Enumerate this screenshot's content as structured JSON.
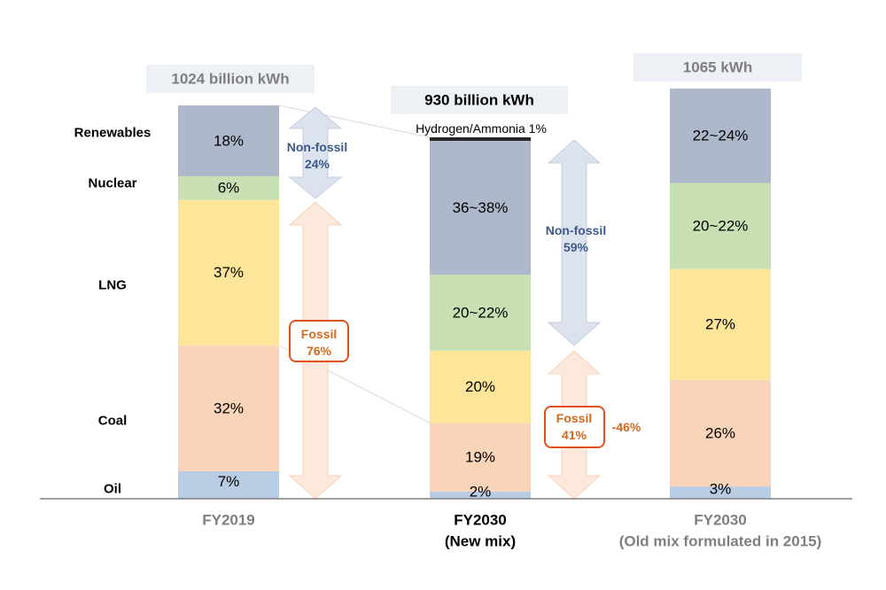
{
  "chart_data": {
    "type": "bar",
    "stacked": true,
    "unit": "%",
    "category_labels": [
      "Renewables",
      "Nuclear",
      "LNG",
      "Coal",
      "Oil"
    ],
    "bars": [
      {
        "total_label": "1024 billion kWh",
        "x_label": [
          "FY2019"
        ],
        "segments": [
          {
            "category": "Oil",
            "value": 7,
            "label": "7%",
            "color": "#b8cce4"
          },
          {
            "category": "Coal",
            "value": 32,
            "label": "32%",
            "color": "#fad4b8"
          },
          {
            "category": "LNG",
            "value": 37,
            "label": "37%",
            "color": "#fde59a"
          },
          {
            "category": "Nuclear",
            "value": 6,
            "label": "6%",
            "color": "#c8e0b4"
          },
          {
            "category": "Renewables",
            "value": 18,
            "label": "18%",
            "color": "#adb9ca"
          }
        ]
      },
      {
        "total_label": "930 billion kWh",
        "x_label": [
          "FY2030",
          "(New mix)"
        ],
        "segments": [
          {
            "category": "Oil",
            "value": 2,
            "label": "2%",
            "color": "#b8cce4"
          },
          {
            "category": "Coal",
            "value": 19,
            "label": "19%",
            "color": "#fad4b8"
          },
          {
            "category": "LNG",
            "value": 20,
            "label": "20%",
            "color": "#fde59a"
          },
          {
            "category": "Nuclear",
            "value": 21,
            "label": "20~22%",
            "color": "#c8e0b4"
          },
          {
            "category": "Renewables",
            "value": 37,
            "label": "36~38%",
            "color": "#adb9ca"
          },
          {
            "category": "Hydrogen/Ammonia",
            "value": 1,
            "label": "Hydrogen/Ammonia  1%",
            "color": "#262626"
          }
        ]
      },
      {
        "total_label": "1065 kWh",
        "x_label": [
          "FY2030",
          "(Old mix formulated in 2015)"
        ],
        "segments": [
          {
            "category": "Oil",
            "value": 3,
            "label": "3%",
            "color": "#b8cce4"
          },
          {
            "category": "Coal",
            "value": 26,
            "label": "26%",
            "color": "#fad4b8"
          },
          {
            "category": "LNG",
            "value": 27,
            "label": "27%",
            "color": "#fde59a"
          },
          {
            "category": "Nuclear",
            "value": 21,
            "label": "20~22%",
            "color": "#c8e0b4"
          },
          {
            "category": "Renewables",
            "value": 23,
            "label": "22~24%",
            "color": "#adb9ca"
          }
        ]
      }
    ],
    "annotations": {
      "fy2019_non_fossil": [
        "Non-fossil",
        "24%"
      ],
      "fy2019_fossil": [
        "Fossil",
        "76%"
      ],
      "fy2030_non_fossil": [
        "Non-fossil",
        "59%"
      ],
      "fy2030_fossil": [
        "Fossil",
        "41%"
      ],
      "fossil_change": "-46%"
    },
    "colors": {
      "non_fossil_text": "#3d5a8a",
      "fossil_text": "#d2691e",
      "fossil_box": "#e2501c",
      "non_fossil_arrow": "#dce3ef",
      "fossil_arrow": "#fde9dc",
      "axis": "#7f7f7f",
      "total_label_bg": "#edf0f5"
    }
  }
}
